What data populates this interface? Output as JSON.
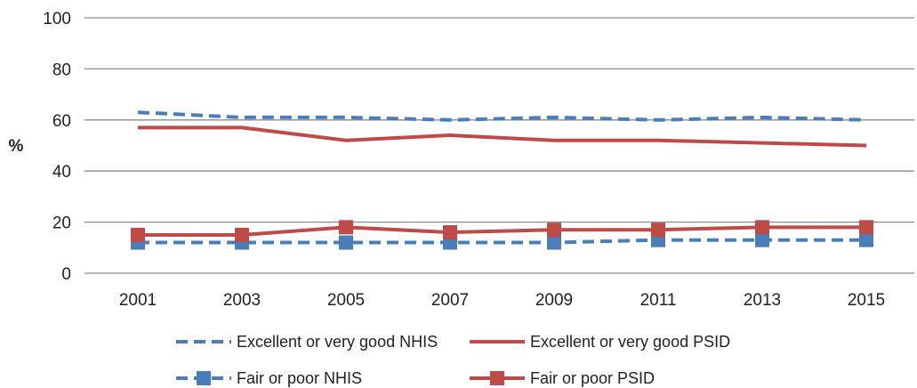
{
  "chart_data": {
    "type": "line",
    "x": [
      "2001",
      "2003",
      "2005",
      "2007",
      "2009",
      "2011",
      "2013",
      "2015"
    ],
    "ylabel": "%",
    "ylim": [
      0,
      100
    ],
    "yticks": [
      "0",
      "20",
      "40",
      "60",
      "80",
      "100"
    ],
    "grid": true,
    "legend_position": "bottom",
    "series": [
      {
        "name": "Excellent or very good NHIS",
        "values": [
          63,
          61,
          61,
          60,
          61,
          60,
          61,
          60
        ],
        "color": "#4a7ebb",
        "style": "dashed",
        "marker": "none"
      },
      {
        "name": "Excellent or very good PSID",
        "values": [
          57,
          57,
          52,
          54,
          52,
          52,
          51,
          50
        ],
        "color": "#be4b48",
        "style": "solid",
        "marker": "none"
      },
      {
        "name": "Fair or poor NHIS",
        "values": [
          12,
          12,
          12,
          12,
          12,
          13,
          13,
          13
        ],
        "color": "#4a7ebb",
        "style": "dashed",
        "marker": "square"
      },
      {
        "name": "Fair or poor PSID",
        "values": [
          15,
          15,
          18,
          16,
          17,
          17,
          18,
          18
        ],
        "color": "#be4b48",
        "style": "solid",
        "marker": "square"
      }
    ]
  }
}
